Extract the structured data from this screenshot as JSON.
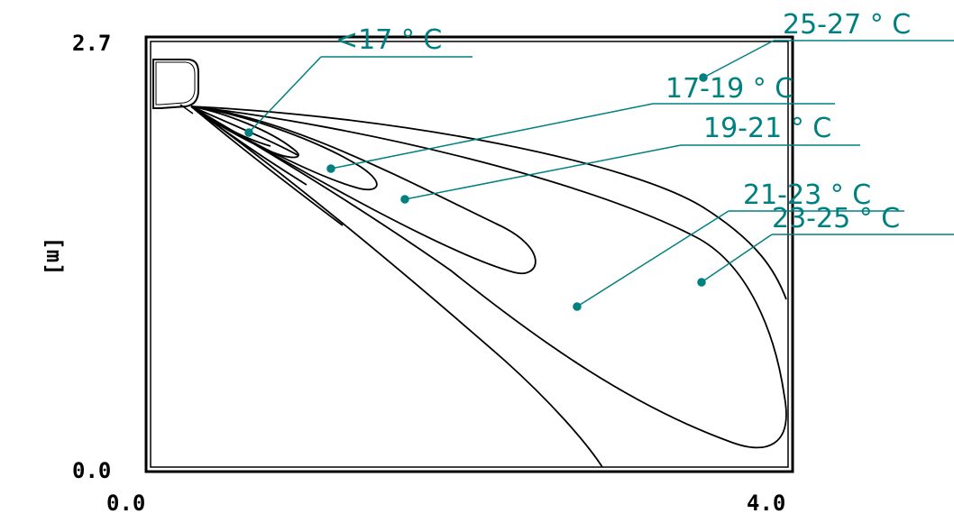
{
  "diagram": {
    "y_axis_label": "[m]",
    "y_ticks": [
      "2.7",
      "0.0"
    ],
    "x_ticks": [
      "0.0",
      "4.0"
    ],
    "label_color": "#008080",
    "zones": [
      {
        "label": "<17 ° C"
      },
      {
        "label": "25-27 ° C"
      },
      {
        "label": "17-19 ° C"
      },
      {
        "label": "19-21 ° C"
      },
      {
        "label": "21-23 ° C"
      },
      {
        "label": "23-25 ° C"
      }
    ]
  }
}
